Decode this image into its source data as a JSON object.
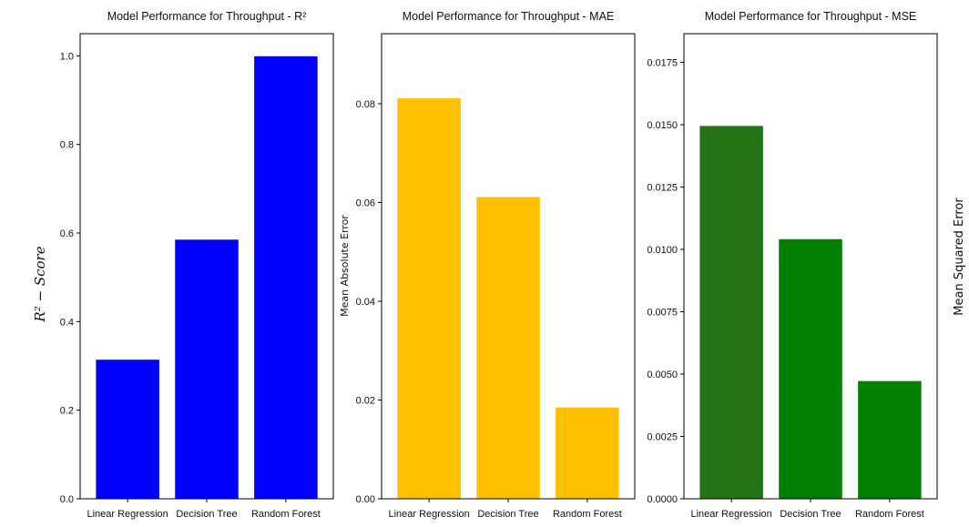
{
  "chart_data": [
    {
      "type": "bar",
      "title": "Model Performance for Throughput - R²",
      "xlabel": "",
      "ylabel": "R² − Score",
      "categories": [
        "Linear Regression",
        "Decision Tree",
        "Random Forest"
      ],
      "values": [
        0.314,
        0.585,
        0.999
      ],
      "colors": [
        "#0000ff",
        "#0000ff",
        "#0000ff"
      ],
      "ylim": [
        0,
        1.05
      ],
      "yticks": [
        0.0,
        0.2,
        0.4,
        0.6,
        0.8,
        1.0
      ],
      "ytick_labels": [
        "0.0",
        "0.2",
        "0.4",
        "0.6",
        "0.8",
        "1.0"
      ],
      "grid": false
    },
    {
      "type": "bar",
      "title": "Model Performance for Throughput - MAE",
      "xlabel": "",
      "ylabel": "Mean Absolute Error",
      "categories": [
        "Linear Regression",
        "Decision Tree",
        "Random Forest"
      ],
      "values": [
        0.0811,
        0.0611,
        0.0185
      ],
      "colors": [
        "#ffc000",
        "#ffc000",
        "#ffc000"
      ],
      "ylim": [
        0,
        0.0942
      ],
      "yticks": [
        0.0,
        0.02,
        0.04,
        0.06,
        0.08
      ],
      "ytick_labels": [
        "0.00",
        "0.02",
        "0.04",
        "0.06",
        "0.08"
      ],
      "grid": false
    },
    {
      "type": "bar",
      "title": "Model Performance for Throughput - MSE",
      "xlabel": "",
      "ylabel": "Mean Squared Error",
      "categories": [
        "Linear Regression",
        "Decision Tree",
        "Random Forest"
      ],
      "values": [
        0.01495,
        0.01041,
        0.00472
      ],
      "colors": [
        "#267317",
        "#008000",
        "#008000"
      ],
      "ylim": [
        0,
        0.01865
      ],
      "yticks": [
        0.0,
        0.0025,
        0.005,
        0.0075,
        0.01,
        0.0125,
        0.015,
        0.0175
      ],
      "ytick_labels": [
        "0.0000",
        "0.0025",
        "0.0050",
        "0.0075",
        "0.0100",
        "0.0125",
        "0.0150",
        "0.0175"
      ],
      "grid": false
    }
  ]
}
